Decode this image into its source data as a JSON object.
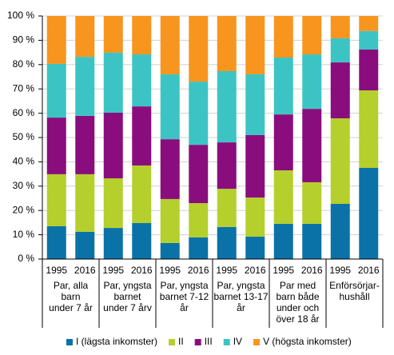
{
  "chart_data": {
    "type": "stacked_bar",
    "categories": [
      "1995",
      "2016",
      "1995",
      "2016",
      "1995",
      "2016",
      "1995",
      "2016",
      "1995",
      "2016",
      "1995",
      "2016"
    ],
    "groups": [
      {
        "label": [
          "Par, alla",
          "barn",
          "under 7 år"
        ]
      },
      {
        "label": [
          "Par, yngsta",
          "barnet",
          "under 7 årv"
        ]
      },
      {
        "label": [
          "Par, yngsta",
          "barnet 7-12",
          "år"
        ]
      },
      {
        "label": [
          "Par, yngsta",
          "barnet 13-17",
          "år"
        ]
      },
      {
        "label": [
          "Par med",
          "barn både",
          "under och",
          "över 18 år"
        ]
      },
      {
        "label": [
          "Enförsörjar-",
          "hushåll"
        ]
      }
    ],
    "series": [
      {
        "name": "I (lägsta inkomster)",
        "color": "#0b72a8",
        "values": [
          13.5,
          11.2,
          12.8,
          14.8,
          6.6,
          8.9,
          13.2,
          9.2,
          14.5,
          14.5,
          22.7,
          37.5
        ]
      },
      {
        "name": "II",
        "color": "#b5cf2c",
        "values": [
          21.4,
          23.7,
          20.4,
          23.7,
          18.1,
          14.1,
          15.7,
          16.1,
          22.0,
          17.1,
          35.2,
          31.9
        ]
      },
      {
        "name": "III",
        "color": "#8a0d7d",
        "values": [
          23.3,
          24.0,
          27.0,
          24.3,
          24.6,
          24.0,
          19.1,
          25.7,
          23.0,
          30.2,
          23.0,
          16.8
        ]
      },
      {
        "name": "IV",
        "color": "#3cc4c4",
        "values": [
          22.1,
          24.3,
          24.7,
          21.4,
          26.7,
          26.0,
          29.3,
          25.0,
          23.4,
          22.4,
          9.9,
          7.6
        ]
      },
      {
        "name": "V (högsta inkomster)",
        "color": "#f7951e",
        "values": [
          19.7,
          16.8,
          15.1,
          15.8,
          24.0,
          27.0,
          22.7,
          24.0,
          17.1,
          15.8,
          9.2,
          6.2
        ]
      }
    ],
    "ylim": [
      0,
      100
    ],
    "yticks": [
      {
        "value": 0,
        "label": "0 %"
      },
      {
        "value": 10,
        "label": "10 %"
      },
      {
        "value": 20,
        "label": "20 %"
      },
      {
        "value": 30,
        "label": "30 %"
      },
      {
        "value": 40,
        "label": "40 %"
      },
      {
        "value": 50,
        "label": "50 %"
      },
      {
        "value": 60,
        "label": "60 %"
      },
      {
        "value": 70,
        "label": "70 %"
      },
      {
        "value": 80,
        "label": "80 %"
      },
      {
        "value": 90,
        "label": "90 %"
      },
      {
        "value": 100,
        "label": "100 %"
      }
    ],
    "grid": true,
    "legend": "bottom"
  }
}
